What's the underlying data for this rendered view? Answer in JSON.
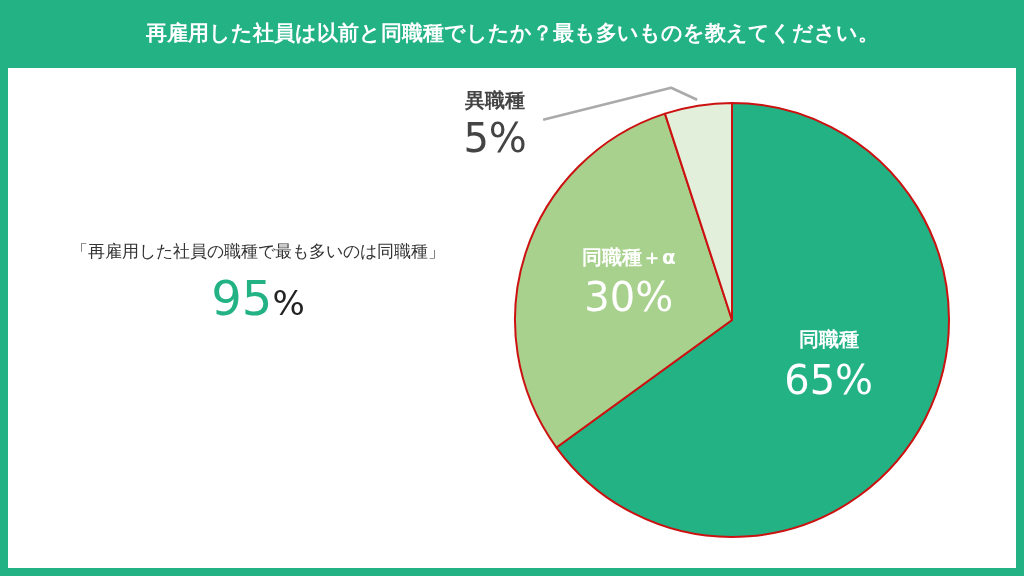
{
  "chart_data": {
    "type": "pie",
    "title": "再雇用した社員は以前と同職種でしたか？最も多いものを教えてください。",
    "categories": [
      "同職種",
      "同職種＋α",
      "異職種"
    ],
    "values": [
      65,
      30,
      5
    ],
    "colors": [
      "#22b284",
      "#a8d18d",
      "#e2efda"
    ],
    "value_labels": [
      "65%",
      "30%",
      "5%"
    ],
    "annotations": [
      "「再雇用した社員の職種で最も多いのは同職種」",
      "95%"
    ]
  }
}
